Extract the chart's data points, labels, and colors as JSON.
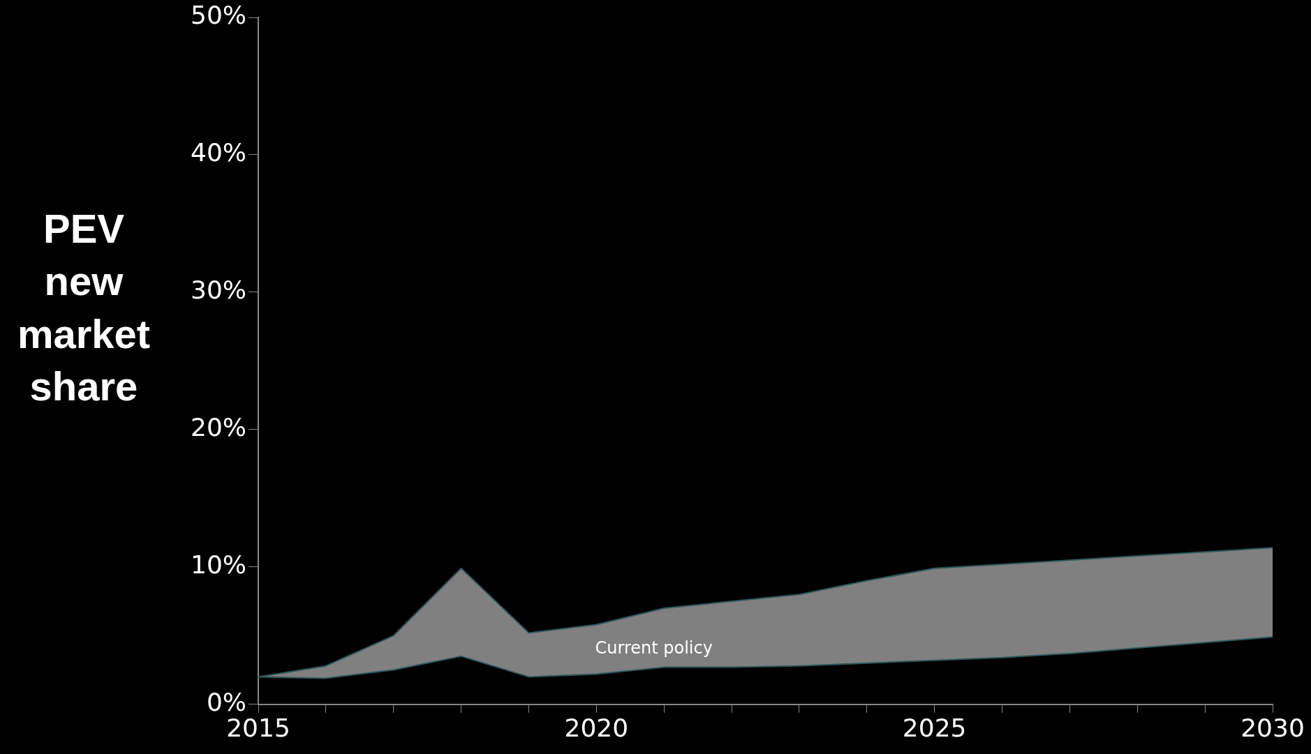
{
  "chart_data": {
    "type": "area",
    "ylabel": "PEV new market share",
    "x": [
      2015,
      2016,
      2017,
      2018,
      2019,
      2020,
      2021,
      2022,
      2023,
      2024,
      2025,
      2026,
      2027,
      2028,
      2029,
      2030
    ],
    "series": [
      {
        "type": "line",
        "color": "#2e5656",
        "values": [
          2.0,
          1.9,
          2.5,
          3.5,
          2.0,
          2.2,
          2.7,
          2.7,
          2.8,
          3.0,
          3.2,
          3.4,
          3.7,
          4.1,
          4.5,
          4.9
        ]
      },
      {
        "color": "#808080",
        "values": [
          2.0,
          2.8,
          5.0,
          9.9,
          5.2,
          5.8,
          7.0,
          7.5,
          8.0,
          9.0,
          9.9,
          10.2,
          10.5,
          10.8,
          11.1,
          11.4
        ]
      }
    ],
    "xlim": [
      2015,
      2030
    ],
    "xticks": [
      2015,
      {
        "value": 2016,
        "label": null
      },
      {
        "value": 2017,
        "label": null
      },
      {
        "value": 2018,
        "label": null
      },
      {
        "value": 2019,
        "label": null
      },
      2020,
      {
        "value": 2021,
        "label": null
      },
      {
        "value": 2022,
        "label": null
      },
      {
        "value": 2023,
        "label": null
      },
      {
        "value": 2024,
        "label": null
      },
      2025,
      {
        "value": 2026,
        "label": null
      },
      {
        "value": 2027,
        "label": null
      },
      {
        "value": 2028,
        "label": null
      },
      {
        "value": 2029,
        "label": null
      },
      2030
    ],
    "ylim": [
      0,
      50
    ],
    "yticks": [
      {
        "value": 0,
        "label": "0%"
      },
      {
        "value": 10,
        "label": "10%"
      },
      {
        "value": 20,
        "label": "20%"
      },
      {
        "value": 30,
        "label": "30%"
      },
      {
        "value": 40,
        "label": "40%"
      },
      {
        "value": 50,
        "label": "50%"
      }
    ],
    "annotations": [
      "Current policy"
    ],
    "grid": false,
    "legend": false
  }
}
